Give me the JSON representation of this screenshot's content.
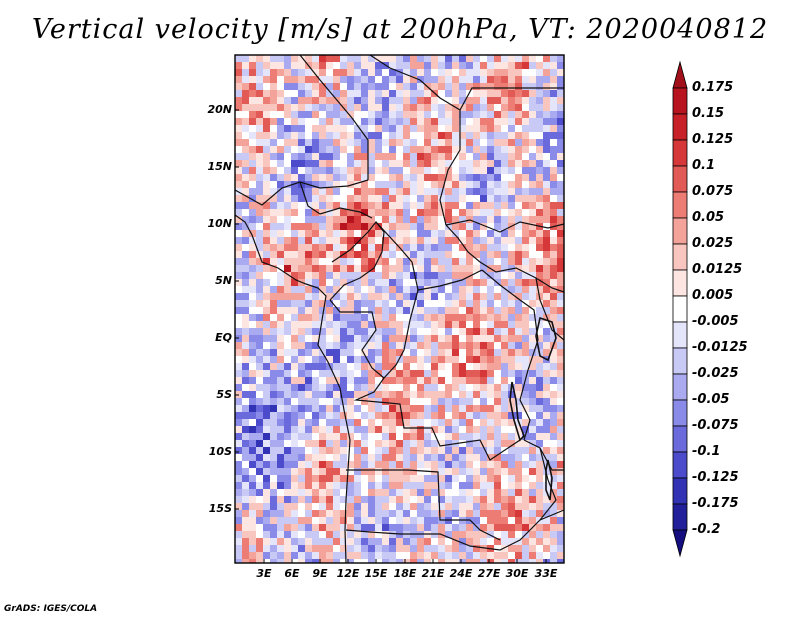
{
  "title": "Vertical velocity [m/s] at 200hPa, VT: 2020040812",
  "credit": "GrADS: IGES/COLA",
  "map": {
    "y_tick_labels": [
      "20N",
      "15N",
      "10N",
      "5N",
      "EQ",
      "5S",
      "10S",
      "15S"
    ],
    "x_tick_labels": [
      "3E",
      "6E",
      "9E",
      "12E",
      "15E",
      "18E",
      "21E",
      "24E",
      "27E",
      "30E",
      "33E"
    ],
    "lon_range": [
      0,
      35
    ],
    "lat_range": [
      -20,
      24.5
    ],
    "field": "vertical velocity",
    "units": "m/s",
    "level": "200hPa",
    "valid_time": "2020040812"
  },
  "colorbar": {
    "labels": [
      "0.175",
      "0.15",
      "0.125",
      "0.1",
      "0.075",
      "0.05",
      "0.025",
      "0.0125",
      "0.005",
      "-0.005",
      "-0.0125",
      "-0.025",
      "-0.05",
      "-0.075",
      "-0.1",
      "-0.125",
      "-0.175",
      "-0.2"
    ],
    "colors": [
      "#a00f1a",
      "#b8141f",
      "#c82028",
      "#d6383a",
      "#e25a55",
      "#ec7c74",
      "#f4a39b",
      "#f9c6bf",
      "#fde6e2",
      "#ffffff",
      "#e4e4fb",
      "#c9c9f6",
      "#aaaaf0",
      "#8a8ae8",
      "#6a6add",
      "#4b4bcc",
      "#3232b5",
      "#21209a",
      "#140e80"
    ]
  },
  "palette": {
    "reds": [
      "#fde6e2",
      "#f9c6bf",
      "#f4a39b",
      "#ec7c74",
      "#e25a55",
      "#d6383a",
      "#b8141f"
    ],
    "blues": [
      "#e4e4fb",
      "#c9c9f6",
      "#aaaaf0",
      "#8a8ae8",
      "#6a6add",
      "#4b4bcc",
      "#3232b5"
    ],
    "neutral": "#ffffff"
  }
}
